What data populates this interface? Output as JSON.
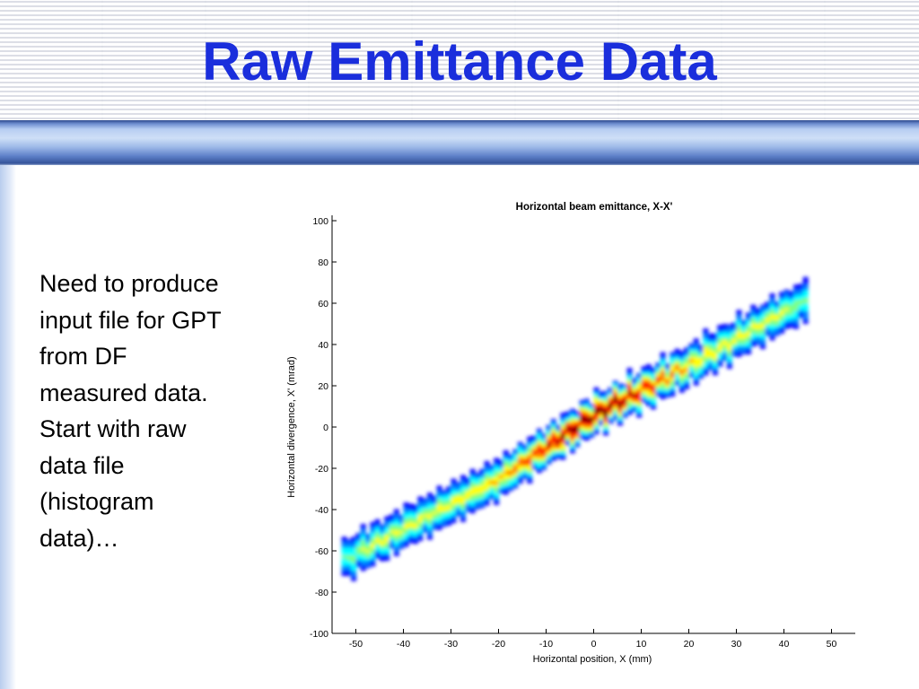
{
  "slide": {
    "title": "Raw Emittance Data",
    "body_lines": [
      "Need to produce",
      "input file for GPT",
      "from DF",
      "measured data.",
      "Start with raw",
      "data file",
      "(histogram",
      "data)…"
    ]
  },
  "colors": {
    "title": "#1a2edc",
    "header_accent": "#5e80c8",
    "colormap": [
      "#00008f",
      "#0000ff",
      "#0080ff",
      "#00ffff",
      "#80ff80",
      "#ffff00",
      "#ff8000",
      "#ff0000",
      "#800000"
    ]
  },
  "chart_data": {
    "type": "heatmap",
    "title": "Horizontal beam emittance, X-X'",
    "xlabel": "Horizontal position, X (mm)",
    "ylabel": "Horizontal divergence, X' (mrad)",
    "xlim": [
      -55,
      55
    ],
    "ylim": [
      -100,
      100
    ],
    "xticks": [
      -50,
      -40,
      -30,
      -20,
      -10,
      0,
      10,
      20,
      30,
      40,
      50
    ],
    "yticks": [
      100,
      80,
      60,
      40,
      20,
      0,
      -20,
      -40,
      -60,
      -80,
      -100
    ],
    "grid": false,
    "colorbar": false,
    "distribution": {
      "x_range": [
        -53,
        45
      ],
      "centerline": [
        [
          -53,
          -65
        ],
        [
          -40,
          -49
        ],
        [
          -20,
          -25
        ],
        [
          0,
          6
        ],
        [
          20,
          30
        ],
        [
          40,
          56
        ],
        [
          45,
          62
        ]
      ],
      "halfwidth_mrad": 9,
      "peak": [
        0,
        7
      ]
    }
  }
}
